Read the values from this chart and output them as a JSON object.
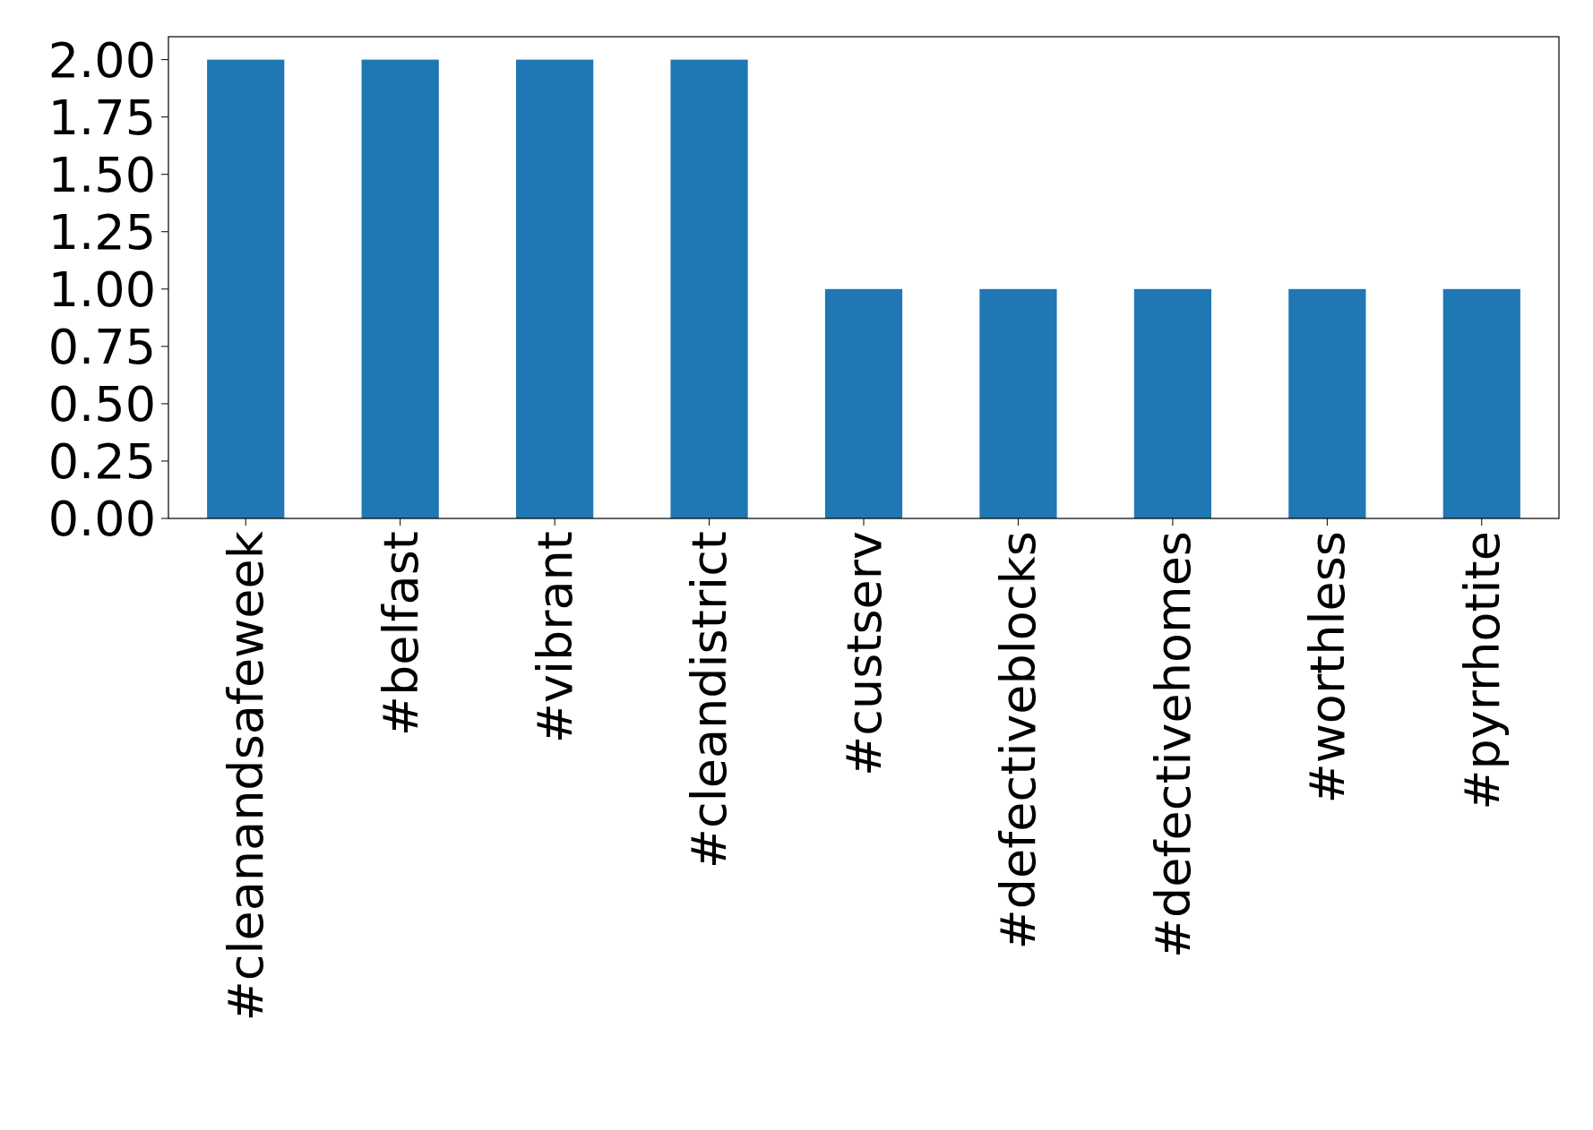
{
  "chart_data": {
    "type": "bar",
    "categories": [
      "#cleanandsafeweek",
      "#belfast",
      "#vibrant",
      "#cleandistrict",
      "#custserv",
      "#defectiveblocks",
      "#defectivehomes",
      "#worthless",
      "#pyrrhotite"
    ],
    "values": [
      2,
      2,
      2,
      2,
      1,
      1,
      1,
      1,
      1
    ],
    "color": "#1f77b4",
    "ylim": [
      0,
      2.1
    ],
    "yticks": [
      {
        "value": 0,
        "label": "0.00"
      },
      {
        "value": 0.25,
        "label": "0.25"
      },
      {
        "value": 0.5,
        "label": "0.50"
      },
      {
        "value": 0.75,
        "label": "0.75"
      },
      {
        "value": 1,
        "label": "1.00"
      },
      {
        "value": 1.25,
        "label": "1.25"
      },
      {
        "value": 1.5,
        "label": "1.50"
      },
      {
        "value": 1.75,
        "label": "1.75"
      },
      {
        "value": 2,
        "label": "2.00"
      }
    ],
    "grid": false
  }
}
